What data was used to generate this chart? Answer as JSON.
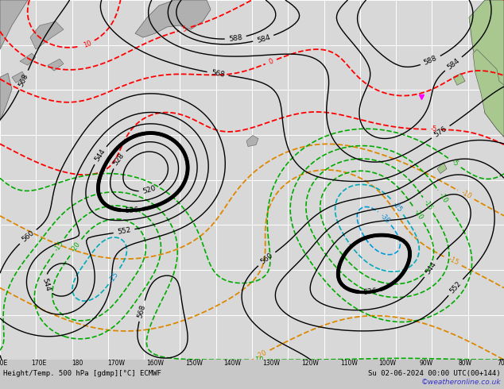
{
  "title_left": "Height/Temp. 500 hPa [gdmp][°C] ECMWF",
  "title_right": "Su 02-06-2024 00:00 UTC(00+144)",
  "watermark": "©weatheronline.co.uk",
  "bg_color": "#c8c8c8",
  "map_bg": "#d8d8d8",
  "land_green": "#a8c890",
  "land_gray": "#b0b0b0",
  "grid_color": "#ffffff",
  "bottom_bar_color": "#b8c8d8",
  "figsize": [
    6.34,
    4.9
  ],
  "dpi": 100,
  "watermark_color": "#3333cc",
  "bold_level": 536
}
